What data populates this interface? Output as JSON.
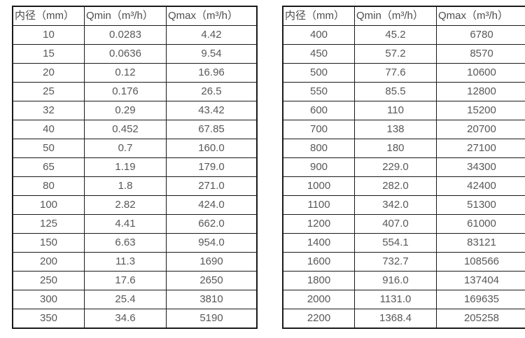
{
  "colors": {
    "background": "#ffffff",
    "table_border": "#1a1a1a",
    "header_text": "#4d4d4d",
    "cell_text": "#585858"
  },
  "chart_data": [
    {
      "type": "table",
      "title": "",
      "columns": [
        "内径（mm）",
        "Qmin（m³/h）",
        "Qmax（m³/h）"
      ],
      "rows": [
        [
          "10",
          "0.0283",
          "4.42"
        ],
        [
          "15",
          "0.0636",
          "9.54"
        ],
        [
          "20",
          "0.12",
          "16.96"
        ],
        [
          "25",
          "0.176",
          "26.5"
        ],
        [
          "32",
          "0.29",
          "43.42"
        ],
        [
          "40",
          "0.452",
          "67.85"
        ],
        [
          "50",
          "0.7",
          "160.0"
        ],
        [
          "65",
          "1.19",
          "179.0"
        ],
        [
          "80",
          "1.8",
          "271.0"
        ],
        [
          "100",
          "2.82",
          "424.0"
        ],
        [
          "125",
          "4.41",
          "662.0"
        ],
        [
          "150",
          "6.63",
          "954.0"
        ],
        [
          "200",
          "11.3",
          "1690"
        ],
        [
          "250",
          "17.6",
          "2650"
        ],
        [
          "300",
          "25.4",
          "3810"
        ],
        [
          "350",
          "34.6",
          "5190"
        ]
      ]
    },
    {
      "type": "table",
      "title": "",
      "columns": [
        "内径（mm）",
        "Qmin（m³/h）",
        "Qmax（m³/h）"
      ],
      "rows": [
        [
          "400",
          "45.2",
          "6780"
        ],
        [
          "450",
          "57.2",
          "8570"
        ],
        [
          "500",
          "77.6",
          "10600"
        ],
        [
          "550",
          "85.5",
          "12800"
        ],
        [
          "600",
          "110",
          "15200"
        ],
        [
          "700",
          "138",
          "20700"
        ],
        [
          "800",
          "180",
          "27100"
        ],
        [
          "900",
          "229.0",
          "34300"
        ],
        [
          "1000",
          "282.0",
          "42400"
        ],
        [
          "1100",
          "342.0",
          "51300"
        ],
        [
          "1200",
          "407.0",
          "61000"
        ],
        [
          "1400",
          "554.1",
          "83121"
        ],
        [
          "1600",
          "732.7",
          "108566"
        ],
        [
          "1800",
          "916.0",
          "137404"
        ],
        [
          "2000",
          "1131.0",
          "169635"
        ],
        [
          "2200",
          "1368.4",
          "205258"
        ]
      ]
    }
  ]
}
